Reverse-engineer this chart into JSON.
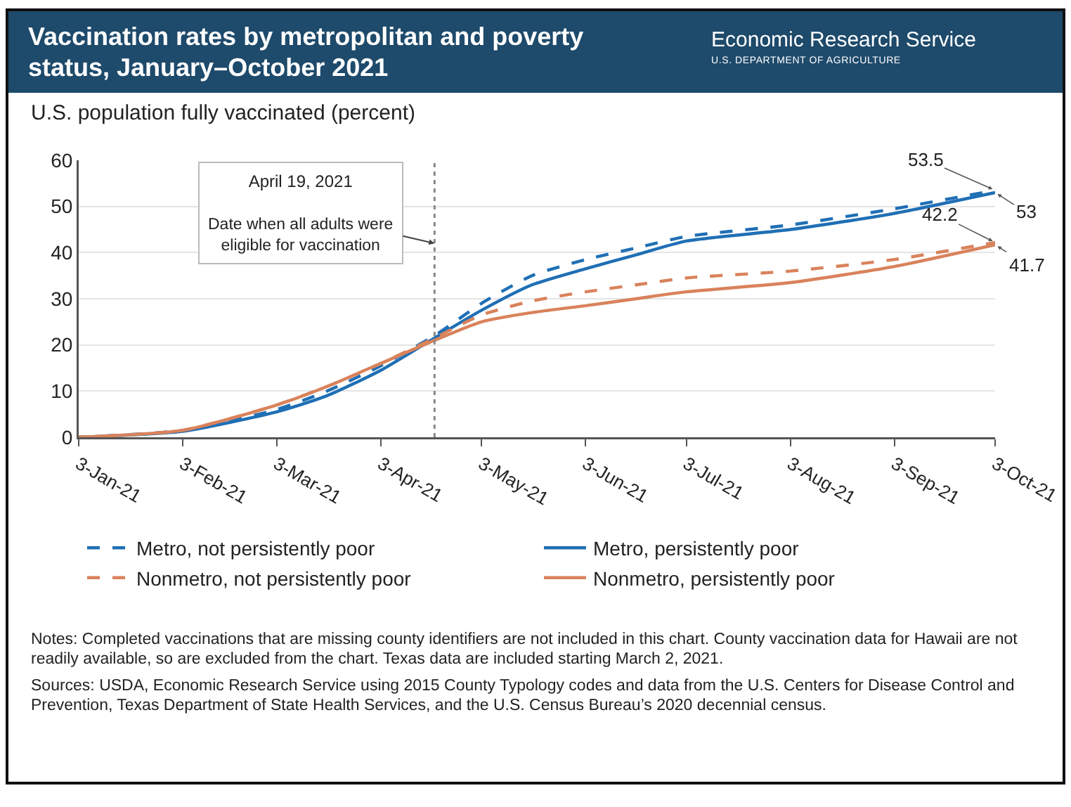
{
  "chart_data": {
    "type": "line",
    "title": "Vaccination rates by metropolitan and poverty status, January–October 2021",
    "ylabel": "U.S. population fully vaccinated (percent)",
    "x": [
      "2021-01-03",
      "2021-02-03",
      "2021-03-03",
      "2021-03-18",
      "2021-04-03",
      "2021-04-19",
      "2021-05-03",
      "2021-05-18",
      "2021-06-03",
      "2021-06-18",
      "2021-07-03",
      "2021-08-03",
      "2021-09-03",
      "2021-10-03"
    ],
    "series": [
      {
        "name": "Metro, not persistently poor",
        "color": "#1f6fb5",
        "line_style": "dashed",
        "values": [
          0,
          1.5,
          6,
          10,
          15.5,
          22,
          29,
          35,
          38.5,
          41,
          43.5,
          46,
          49.5,
          53.5
        ]
      },
      {
        "name": "Metro, persistently poor",
        "color": "#1f6fb5",
        "line_style": "solid",
        "values": [
          0,
          1.3,
          5.5,
          9,
          14.5,
          21.5,
          27.5,
          33,
          36.5,
          39.5,
          42.5,
          45,
          48.5,
          53
        ]
      },
      {
        "name": "Nonmetro, not persistently poor",
        "color": "#d9825b",
        "line_style": "dashed",
        "values": [
          0,
          1.5,
          7,
          11,
          16,
          21.5,
          26.5,
          29.5,
          31.5,
          33,
          34.5,
          36,
          38.5,
          42.2
        ]
      },
      {
        "name": "Nonmetro, persistently poor",
        "color": "#d9825b",
        "line_style": "solid",
        "values": [
          0,
          1.5,
          7,
          11,
          16,
          21,
          25,
          27,
          28.5,
          30,
          31.5,
          33.5,
          37,
          41.7
        ]
      }
    ],
    "xlim": [
      "2021-01-03",
      "2021-10-03"
    ],
    "xticks": [
      {
        "value": "2021-01-03",
        "label": "3-Jan-21"
      },
      {
        "value": "2021-02-03",
        "label": "3-Feb-21"
      },
      {
        "value": "2021-03-03",
        "label": "3-Mar-21"
      },
      {
        "value": "2021-04-03",
        "label": "3-Apr-21"
      },
      {
        "value": "2021-05-03",
        "label": "3-May-21"
      },
      {
        "value": "2021-06-03",
        "label": "3-Jun-21"
      },
      {
        "value": "2021-07-03",
        "label": "3-Jul-21"
      },
      {
        "value": "2021-08-03",
        "label": "3-Aug-21"
      },
      {
        "value": "2021-09-03",
        "label": "3-Sep-21"
      },
      {
        "value": "2021-10-03",
        "label": "3-Oct-21"
      }
    ],
    "ylim": [
      0,
      60
    ],
    "yticks": [
      0,
      10,
      20,
      30,
      40,
      50,
      60
    ],
    "grid": "y",
    "legend": "bottom",
    "marker": "none",
    "ref_lines": [
      {
        "axis": "x",
        "value": "2021-04-19",
        "label": "April 19, 2021\nDate when all adults were\neligible for vaccination",
        "color": "#888888",
        "line_style": "dotted"
      }
    ],
    "annotations": [
      {
        "text": "53.5",
        "x": "2021-10-03",
        "y": 53.5
      },
      {
        "text": "53",
        "x": "2021-10-03",
        "y": 53
      },
      {
        "text": "42.2",
        "x": "2021-10-03",
        "y": 42.2
      },
      {
        "text": "41.7",
        "x": "2021-10-03",
        "y": 41.7
      },
      "Economic Research Service",
      "U.S. DEPARTMENT OF AGRICULTURE",
      "Notes: Completed vaccinations that are missing county identifiers are not included in this chart. County vaccination data for Hawaii are not readily available, so are excluded from the chart. Texas data are included starting March 2, 2021.",
      "Sources: USDA, Economic Research Service using 2015 County Typology codes and data from the U.S. Centers for Disease Control and Prevention, Texas Department of State Health Services, and the U.S. Census Bureau’s 2020 decennial census."
    ]
  }
}
